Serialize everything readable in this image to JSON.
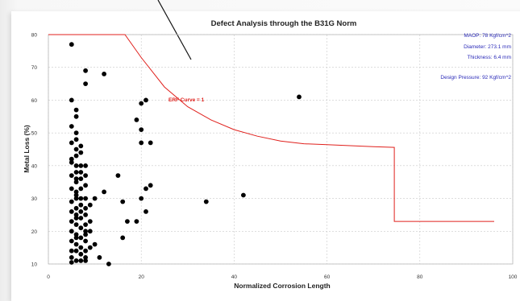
{
  "chart_data": {
    "type": "scatter",
    "title": "Defect Analysis through the B31G Norm",
    "xlabel": "Normalized Corrosion Length",
    "ylabel": "Metal Loss (%)",
    "xlim": [
      0,
      100
    ],
    "ylim": [
      10,
      80
    ],
    "x_ticks": [
      0,
      20,
      40,
      60,
      80,
      100
    ],
    "y_ticks": [
      10,
      20,
      30,
      40,
      50,
      60,
      70,
      80
    ],
    "grid": true,
    "info": {
      "maop": "MAOP: 78 Kgf/cm^2",
      "diameter": "Diameter: 273.1 mm",
      "thickness": "Thickness: 6.4 mm",
      "design_pressure": "Design Pressure: 92 Kgf/cm^2"
    },
    "curve": {
      "label": "ERF Curve = 1",
      "color": "#e0201c",
      "x": [
        0,
        5,
        10,
        16.5,
        20,
        25,
        30,
        35,
        40,
        45,
        50,
        55,
        60,
        65,
        70,
        74.5,
        74.5,
        80,
        90,
        96
      ],
      "y": [
        80,
        80,
        80,
        80,
        73,
        64,
        58,
        54,
        51,
        49,
        47.5,
        46.7,
        46.4,
        46.1,
        45.8,
        45.6,
        23,
        23,
        23,
        23
      ]
    },
    "points": {
      "color": "#000000",
      "x": [
        5,
        5,
        5,
        5,
        5,
        5,
        5,
        5,
        5,
        5,
        5,
        5,
        5,
        5,
        5,
        5,
        6,
        6,
        6,
        6,
        6,
        6,
        6,
        6,
        6,
        6,
        6,
        6,
        6,
        6,
        6,
        6,
        6,
        6,
        6,
        6,
        6,
        6,
        7,
        7,
        7,
        7,
        7,
        7,
        7,
        7,
        7,
        7,
        7,
        7,
        7,
        7,
        7,
        8,
        8,
        8,
        8,
        8,
        8,
        8,
        8,
        8,
        8,
        8,
        8,
        8,
        8,
        8,
        9,
        9,
        9,
        9,
        10,
        10,
        11,
        12,
        12,
        13,
        15,
        16,
        16,
        17,
        19,
        19,
        20,
        20,
        20,
        20,
        21,
        21,
        21,
        22,
        22,
        34,
        42,
        54
      ],
      "y": [
        77,
        60,
        52,
        47,
        42,
        37,
        33,
        29,
        26,
        23,
        20,
        17,
        14,
        12,
        10.5,
        41,
        57,
        55,
        50,
        48,
        45,
        43,
        40,
        38,
        35,
        32,
        30,
        27,
        25,
        22,
        19,
        16,
        14,
        11,
        31,
        24,
        18,
        36,
        46,
        44,
        40,
        36,
        33,
        30,
        28,
        24,
        21,
        18,
        15,
        13,
        11,
        38,
        26,
        69,
        65,
        40,
        37,
        34,
        30,
        27,
        25,
        22,
        19,
        17,
        14,
        12,
        11,
        20,
        20,
        15,
        28,
        23,
        16,
        30,
        12,
        68,
        32,
        10,
        37,
        29,
        18,
        23,
        23,
        54,
        59,
        51,
        47,
        30,
        33,
        60,
        26,
        47,
        34,
        29,
        31,
        61
      ]
    }
  }
}
